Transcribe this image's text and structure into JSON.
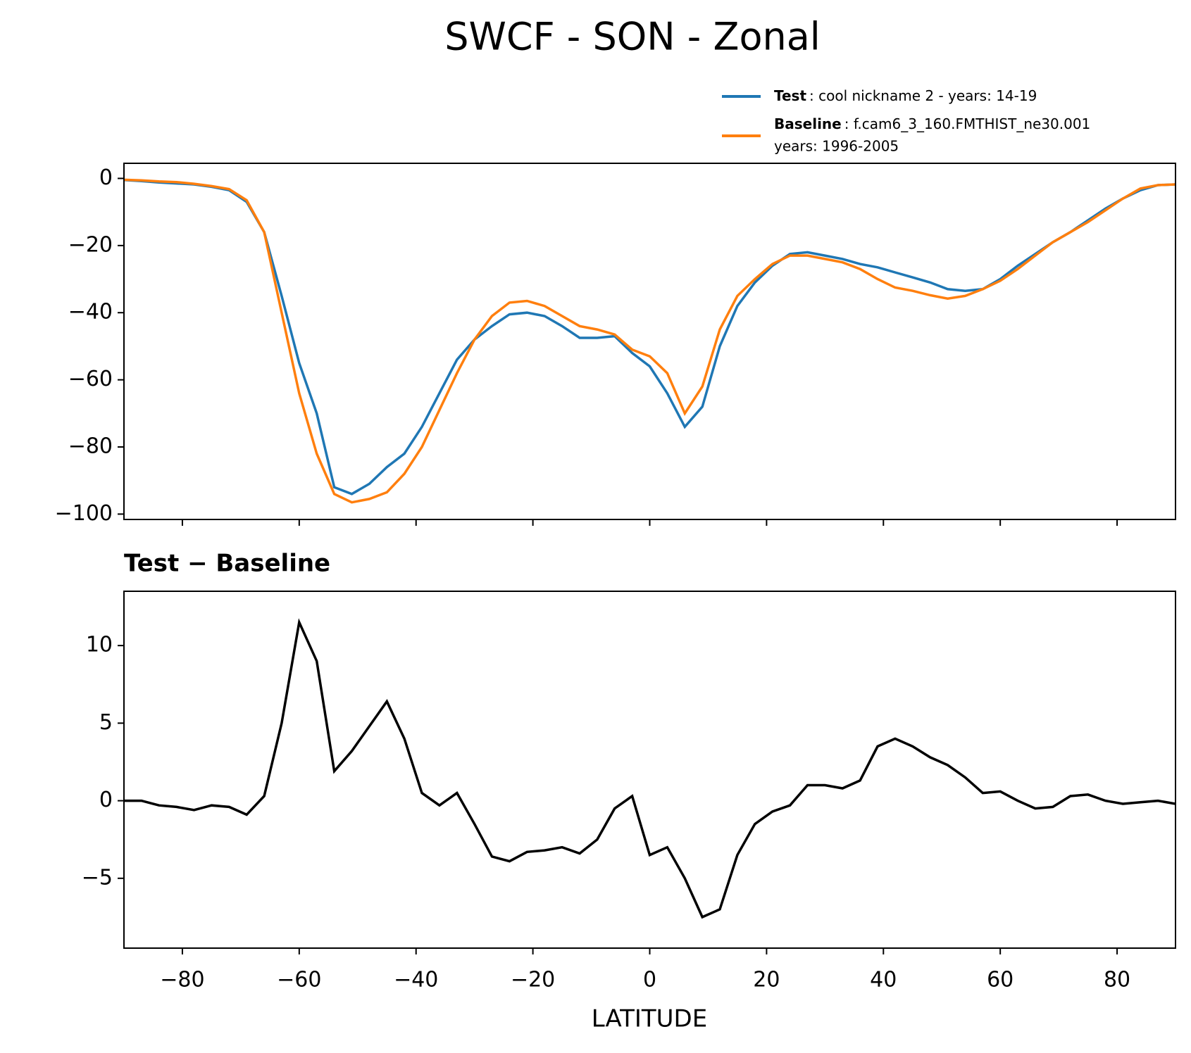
{
  "chart_data": [
    {
      "type": "line",
      "title": "SWCF - SON - Zonal",
      "x": [
        -90,
        -87,
        -84,
        -81,
        -78,
        -75,
        -72,
        -69,
        -66,
        -63,
        -60,
        -57,
        -54,
        -51,
        -48,
        -45,
        -42,
        -39,
        -36,
        -33,
        -30,
        -27,
        -24,
        -21,
        -18,
        -15,
        -12,
        -9,
        -6,
        -3,
        0,
        3,
        6,
        9,
        12,
        15,
        18,
        21,
        24,
        27,
        30,
        33,
        36,
        39,
        42,
        45,
        48,
        51,
        54,
        57,
        60,
        63,
        66,
        69,
        72,
        75,
        78,
        81,
        84,
        87,
        90
      ],
      "series": [
        {
          "name": "Test",
          "label": [
            ": cool nickname 2 - years: 14-19"
          ],
          "color": "#1f77b4",
          "values": [
            -0.5,
            -0.8,
            -1.2,
            -1.5,
            -1.8,
            -2.5,
            -3.5,
            -7,
            -16,
            -35,
            -55,
            -70,
            -92,
            -94,
            -91,
            -86,
            -82,
            -74,
            -64,
            -54,
            -48,
            -44,
            -40.5,
            -40,
            -41,
            -44,
            -47.5,
            -47.5,
            -47,
            -52,
            -56,
            -64,
            -74,
            -68,
            -50,
            -38,
            -31,
            -26,
            -22.5,
            -22,
            -23,
            -24,
            -25.5,
            -26.5,
            -28,
            -29.5,
            -31,
            -33,
            -33.5,
            -33,
            -30,
            -26,
            -22.5,
            -19,
            -16,
            -12.5,
            -9,
            -6,
            -3.5,
            -2,
            -1.8
          ]
        },
        {
          "name": "Baseline",
          "label": [
            ": f.cam6_3_160.FMTHIST_ne30.001",
            "years: 1996-2005"
          ],
          "color": "#ff7f0e",
          "values": [
            -0.4,
            -0.6,
            -0.9,
            -1.1,
            -1.6,
            -2.3,
            -3.2,
            -6.5,
            -16,
            -40,
            -64,
            -82,
            -94,
            -96.5,
            -95.5,
            -93.5,
            -88,
            -80,
            -69,
            -58,
            -48,
            -41,
            -37,
            -36.5,
            -38,
            -41,
            -44,
            -45,
            -46.5,
            -51,
            -53,
            -58,
            -70,
            -62,
            -45,
            -35,
            -30,
            -25.5,
            -23,
            -23,
            -24,
            -25,
            -27,
            -30,
            -32.5,
            -33.5,
            -34.8,
            -35.8,
            -35,
            -33,
            -30.5,
            -27,
            -23,
            -19,
            -16,
            -13,
            -9.5,
            -6,
            -3,
            -2,
            -1.8
          ]
        }
      ],
      "xlim": [
        -90,
        90
      ],
      "ylim": [
        -101.6,
        4.5
      ],
      "yticks": [
        0,
        {
          "value": -20,
          "label": "−20"
        },
        {
          "value": -40,
          "label": "−40"
        },
        {
          "value": -60,
          "label": "−60"
        },
        {
          "value": -80,
          "label": "−80"
        },
        {
          "value": -100,
          "label": "−100"
        }
      ]
    },
    {
      "type": "line",
      "title": "Test − Baseline",
      "xlabel": "LATITUDE",
      "x": [
        -90,
        -87,
        -84,
        -81,
        -78,
        -75,
        -72,
        -69,
        -66,
        -63,
        -60,
        -57,
        -54,
        -51,
        -48,
        -45,
        -42,
        -39,
        -36,
        -33,
        -30,
        -27,
        -24,
        -21,
        -18,
        -15,
        -12,
        -9,
        -6,
        -3,
        0,
        3,
        6,
        9,
        12,
        15,
        18,
        21,
        24,
        27,
        30,
        33,
        36,
        39,
        42,
        45,
        48,
        51,
        54,
        57,
        60,
        63,
        66,
        69,
        72,
        75,
        78,
        81,
        84,
        87,
        90
      ],
      "series": [
        {
          "name": "Test − Baseline",
          "color": "#000000",
          "values": [
            0,
            0,
            -0.3,
            -0.4,
            -0.6,
            -0.3,
            -0.4,
            -0.9,
            0.3,
            5,
            11.5,
            9,
            1.9,
            3.2,
            4.8,
            6.4,
            4,
            0.5,
            -0.3,
            0.5,
            -1.5,
            -3.6,
            -3.9,
            -3.3,
            -3.2,
            -3,
            -3.4,
            -2.5,
            -0.5,
            0.3,
            -3.5,
            -3,
            -5,
            -7.5,
            -7,
            -3.5,
            -1.5,
            -0.7,
            -0.3,
            1,
            1,
            0.8,
            1.3,
            3.5,
            4,
            3.5,
            2.8,
            2.3,
            1.5,
            0.5,
            0.6,
            0,
            -0.5,
            -0.4,
            0.3,
            0.4,
            0,
            -0.2,
            -0.1,
            0,
            -0.2
          ]
        }
      ],
      "xlim": [
        -90,
        90
      ],
      "ylim": [
        -9.5,
        13.5
      ],
      "xticks": [
        {
          "value": -80,
          "label": "−80"
        },
        {
          "value": -60,
          "label": "−60"
        },
        {
          "value": -40,
          "label": "−40"
        },
        {
          "value": -20,
          "label": "−20"
        },
        0,
        20,
        40,
        60,
        80
      ],
      "yticks": [
        {
          "value": -5,
          "label": "−5"
        },
        0,
        5,
        10
      ]
    }
  ]
}
